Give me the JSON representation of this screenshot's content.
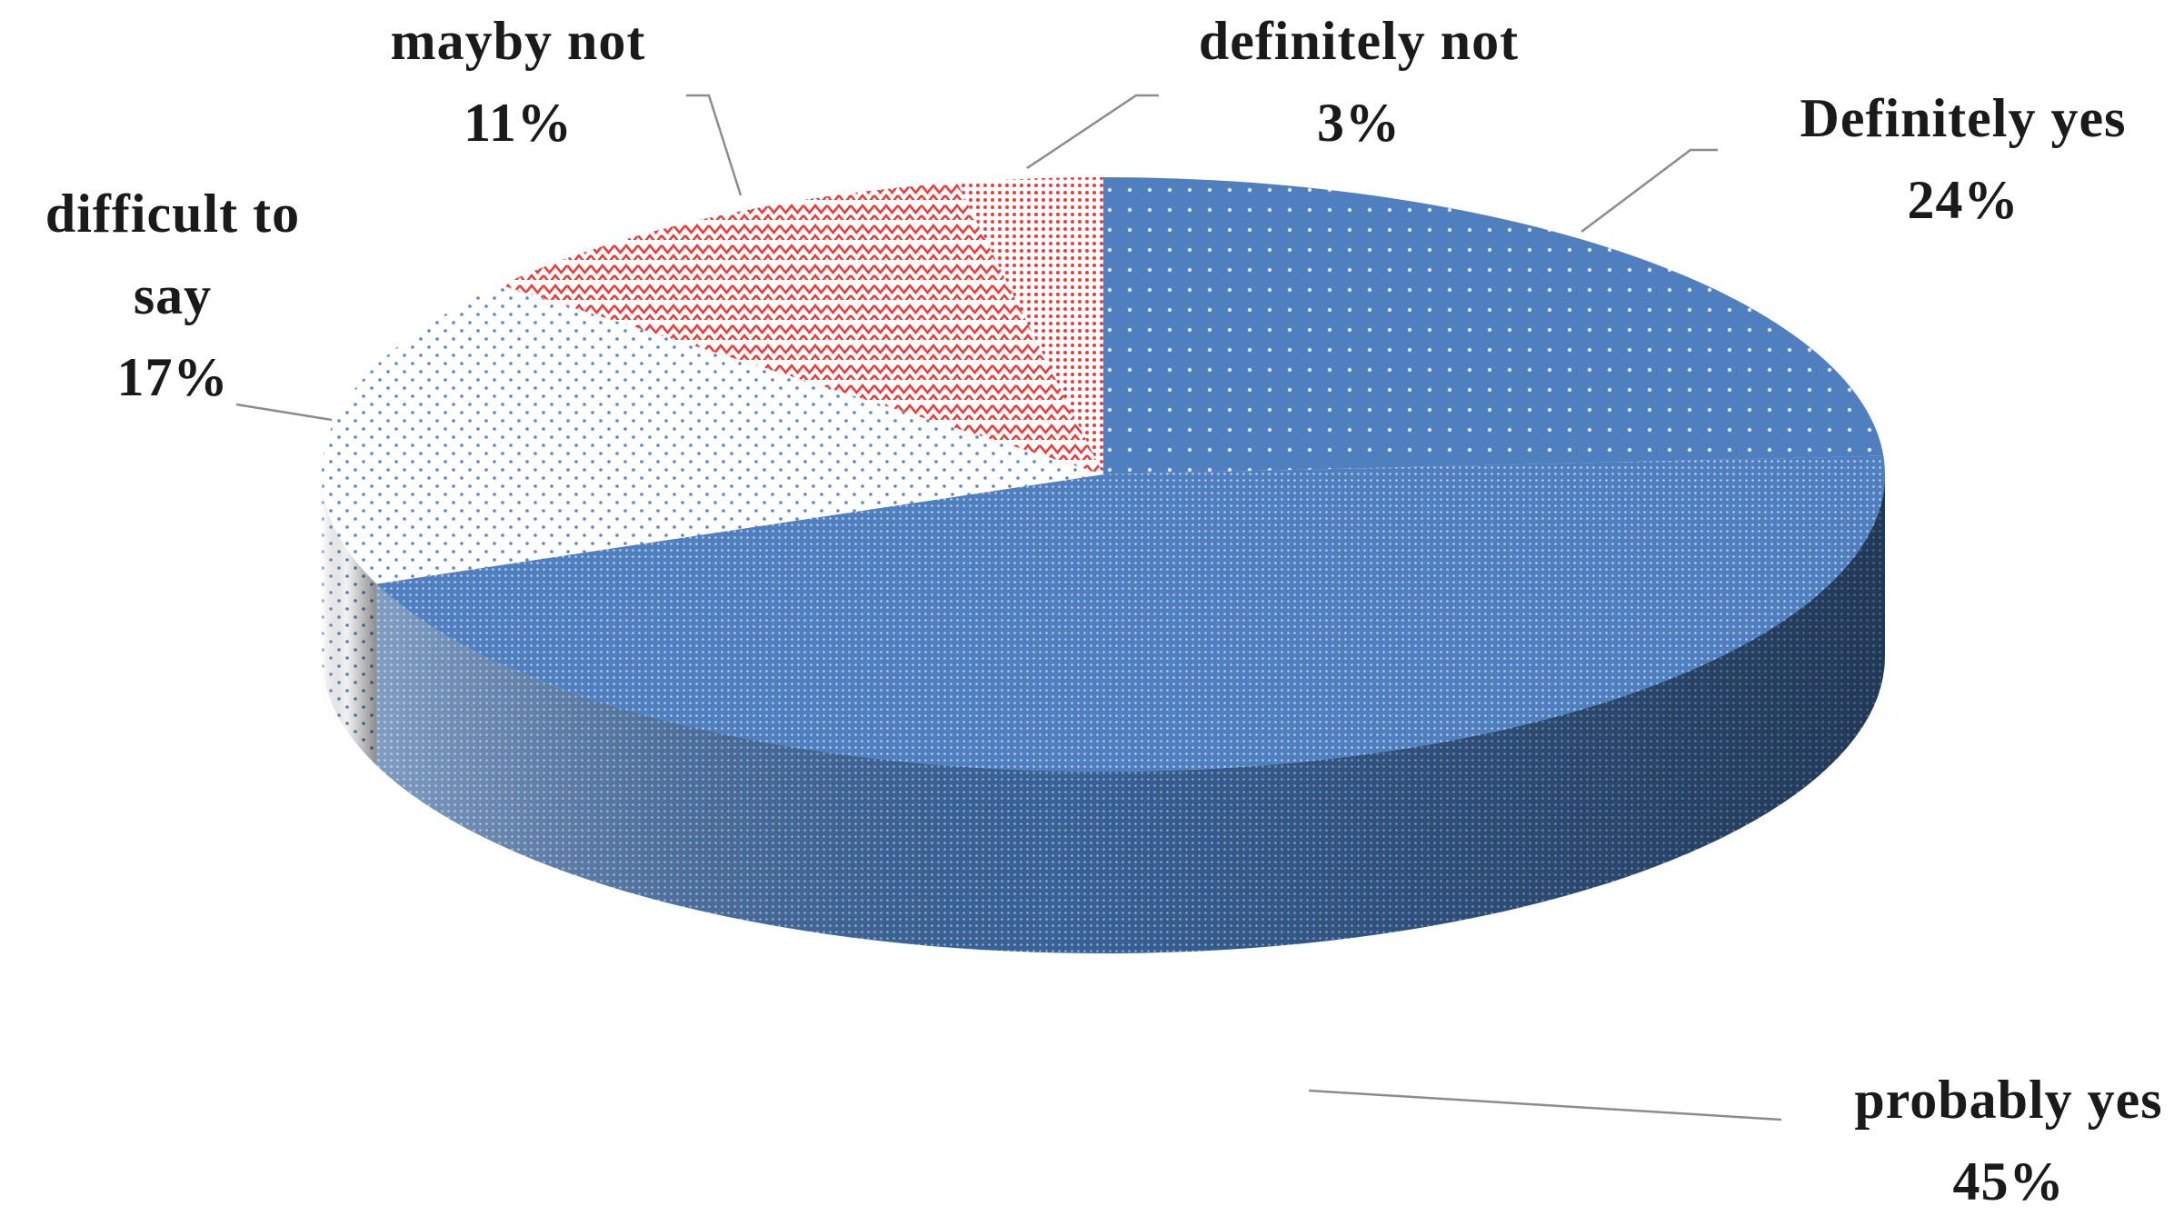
{
  "chart_data": {
    "type": "pie",
    "style": "3d",
    "start_angle_deg": -90,
    "direction": "clockwise",
    "slices": [
      {
        "name": "Definitely yes",
        "value": 24,
        "label_lines": [
          "Definitely yes"
        ],
        "pct_label": "24%",
        "color": "#4f7fbf",
        "pattern": "small-dots"
      },
      {
        "name": "probably yes",
        "value": 45,
        "label_lines": [
          "probably yes"
        ],
        "pct_label": "45%",
        "color": "#4f7fbf",
        "pattern": "fine-grid"
      },
      {
        "name": "difficult to say",
        "value": 17,
        "label_lines": [
          "difficult to",
          "say"
        ],
        "pct_label": "17%",
        "color": "#ffffff",
        "pattern": "dotted"
      },
      {
        "name": "mayby not",
        "value": 11,
        "label_lines": [
          "mayby not"
        ],
        "pct_label": "11%",
        "color": "#ee3b3b",
        "pattern": "zigzag"
      },
      {
        "name": "definitely not",
        "value": 3,
        "label_lines": [
          "definitely not"
        ],
        "pct_label": "3%",
        "color": "#ee3b3b",
        "pattern": "dense-dots"
      }
    ],
    "legend": "none",
    "title": ""
  }
}
